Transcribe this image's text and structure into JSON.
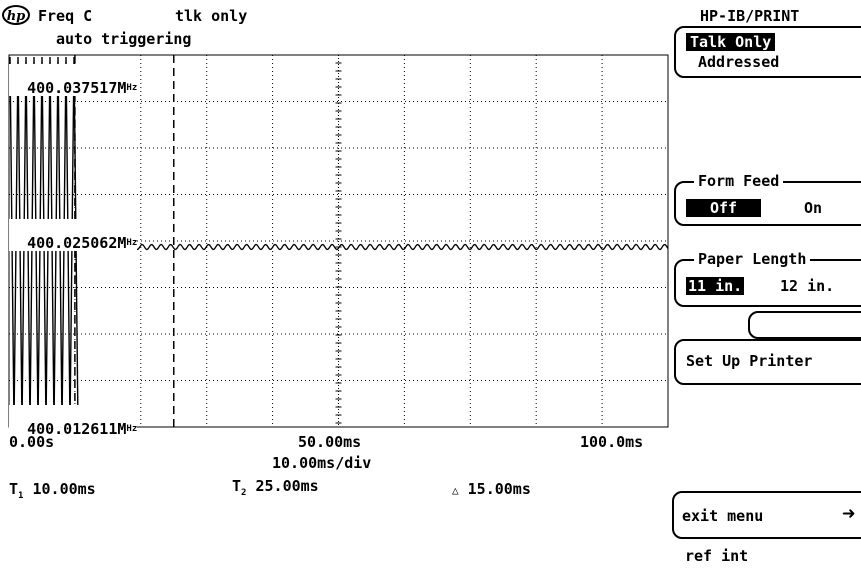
{
  "header": {
    "logo": "hp",
    "mode": "Freq C",
    "status": "tlk only",
    "trigger": "auto triggering"
  },
  "display": {
    "y_labels": [
      "400.037517MHz",
      "400.025062MHz",
      "400.012611MHz"
    ],
    "y_label_texts": [
      "400.037517M",
      "400.025062M",
      "400.012611M"
    ],
    "y_unit": "Hz",
    "x_labels": [
      "0.00s",
      "50.00ms",
      "100.0ms"
    ],
    "timebase": "10.00ms/div",
    "marker1_label": "10.00ms",
    "marker2_label": "25.00ms",
    "delta_label": "15.00ms",
    "marker1_time_ms": 10,
    "marker2_time_ms": 25,
    "x_range_ms": [
      0,
      100
    ],
    "divisions_x": 10,
    "divisions_y": 8
  },
  "menu": {
    "title": "HP-IB/PRINT",
    "talk_only": "Talk Only",
    "addressed": "Addressed",
    "form_feed": {
      "title": "Form Feed",
      "off": "Off",
      "on": "On",
      "selected": "Off"
    },
    "paper_length": {
      "title": "Paper Length",
      "opt1": "11 in.",
      "opt2": "12 in.",
      "selected": "11 in."
    },
    "set_up_printer": "Set Up Printer",
    "exit_menu": "exit menu",
    "ref": "ref int"
  }
}
